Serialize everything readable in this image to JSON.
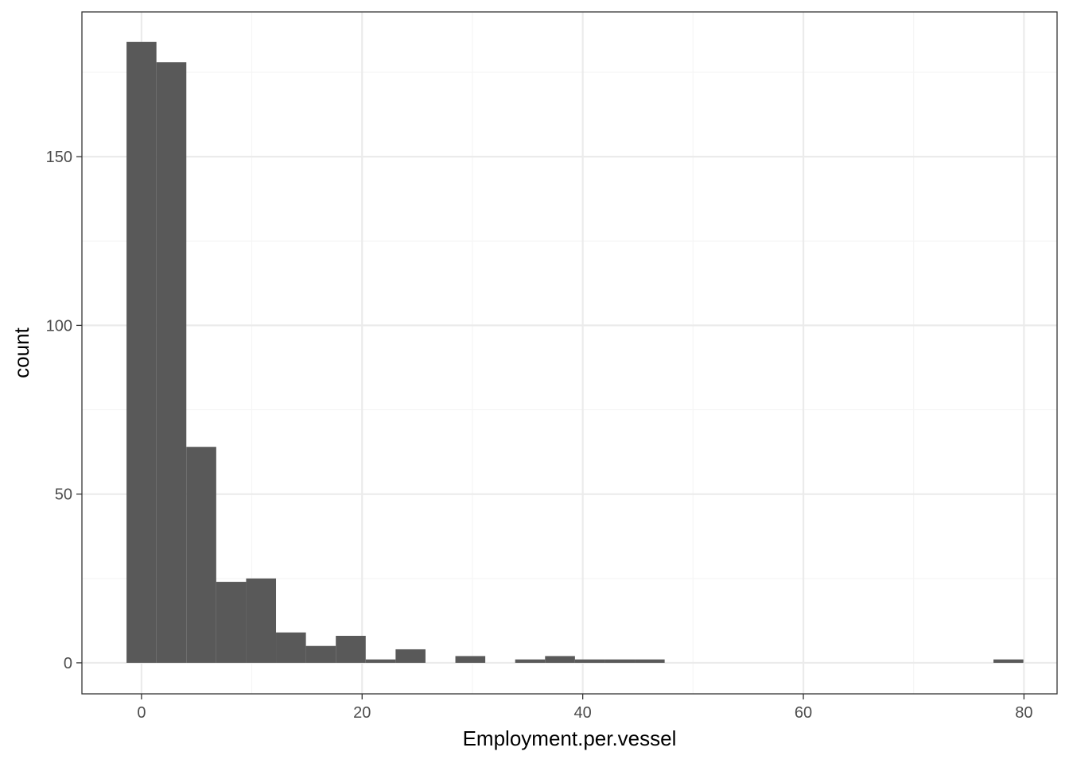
{
  "chart_data": {
    "type": "bar",
    "subtype": "histogram",
    "title": "",
    "xlabel": "Employment.per.vessel",
    "ylabel": "count",
    "xlim": [
      -5.4,
      83.0
    ],
    "ylim": [
      -9.2,
      192.9
    ],
    "x_ticks": [
      0,
      20,
      40,
      60,
      80
    ],
    "y_ticks": [
      0,
      50,
      100,
      150
    ],
    "grid": true,
    "legend": "none",
    "bin_width": 2.71,
    "bins": [
      {
        "x": 0.0,
        "count": 184
      },
      {
        "x": 2.71,
        "count": 178
      },
      {
        "x": 5.42,
        "count": 64
      },
      {
        "x": 8.13,
        "count": 24
      },
      {
        "x": 10.84,
        "count": 25
      },
      {
        "x": 13.55,
        "count": 9
      },
      {
        "x": 16.26,
        "count": 5
      },
      {
        "x": 18.97,
        "count": 8
      },
      {
        "x": 21.68,
        "count": 1
      },
      {
        "x": 24.39,
        "count": 4
      },
      {
        "x": 27.1,
        "count": 0
      },
      {
        "x": 29.81,
        "count": 2
      },
      {
        "x": 32.52,
        "count": 0
      },
      {
        "x": 35.23,
        "count": 1
      },
      {
        "x": 37.94,
        "count": 2
      },
      {
        "x": 40.65,
        "count": 1
      },
      {
        "x": 43.36,
        "count": 1
      },
      {
        "x": 46.07,
        "count": 1
      },
      {
        "x": 78.59,
        "count": 1
      }
    ],
    "colors": {
      "bar": "#595959",
      "panel_border": "#333333",
      "grid_major": "#ebebeb",
      "grid_minor": "#f5f5f5",
      "tick_text": "#4d4d4d"
    }
  }
}
